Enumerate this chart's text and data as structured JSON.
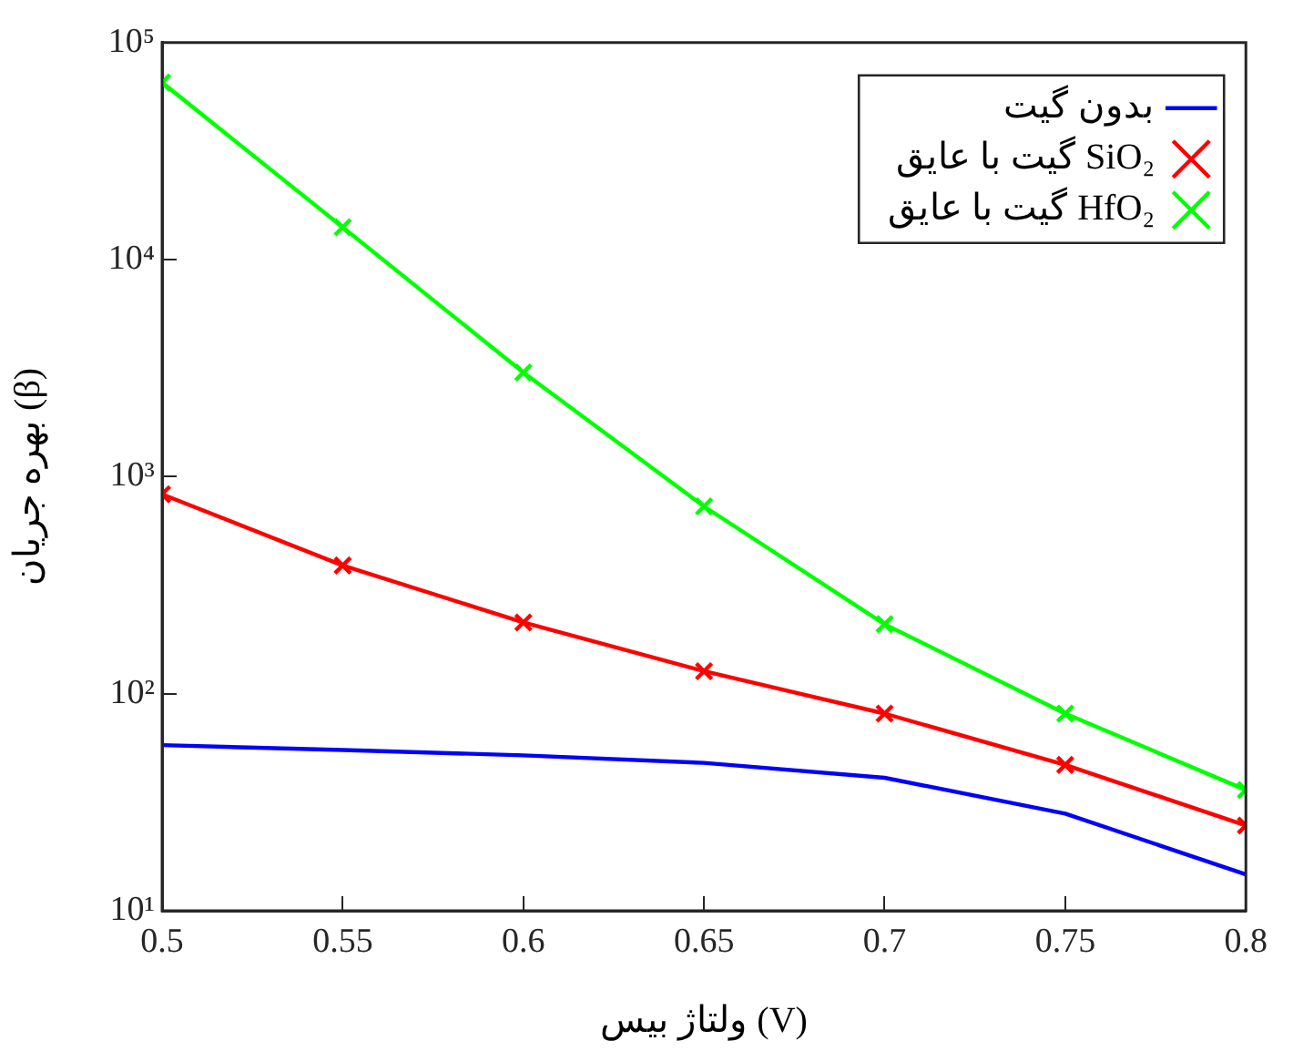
{
  "chart_data": {
    "type": "line",
    "xlabel": "ولتاژ بیس (V)",
    "ylabel": "بهره جریان (β)",
    "x": [
      0.5,
      0.55,
      0.6,
      0.65,
      0.7,
      0.75,
      0.8
    ],
    "series": [
      {
        "name": "بدون گیت",
        "color": "#0000ff",
        "marker": "none",
        "values": [
          58,
          55,
          52,
          48,
          41,
          28,
          14.7
        ]
      },
      {
        "name": "گیت با عایق SiO₂",
        "color": "#ff0000",
        "marker": "cross",
        "values": [
          830,
          390,
          213,
          127,
          81,
          47,
          24.7
        ]
      },
      {
        "name": "گیت با عایق HfO₂",
        "color": "#00ff00",
        "marker": "cross",
        "values": [
          65500,
          14100,
          3020,
          730,
          209,
          81,
          36
        ]
      }
    ],
    "log": "y",
    "xlim": [
      0.5,
      0.8
    ],
    "xticks": [
      0.5,
      0.55,
      0.6,
      0.65,
      0.7,
      0.75,
      0.8
    ],
    "ylim": [
      10,
      100000
    ],
    "yticks": [
      {
        "value": 10,
        "label": "10¹"
      },
      {
        "value": 100,
        "label": "10²"
      },
      {
        "value": 1000,
        "label": "10³"
      },
      {
        "value": 10000,
        "label": "10⁴"
      },
      {
        "value": 100000,
        "label": "10⁵"
      }
    ],
    "grid": false,
    "legend": "top right",
    "line_style": "solid"
  }
}
